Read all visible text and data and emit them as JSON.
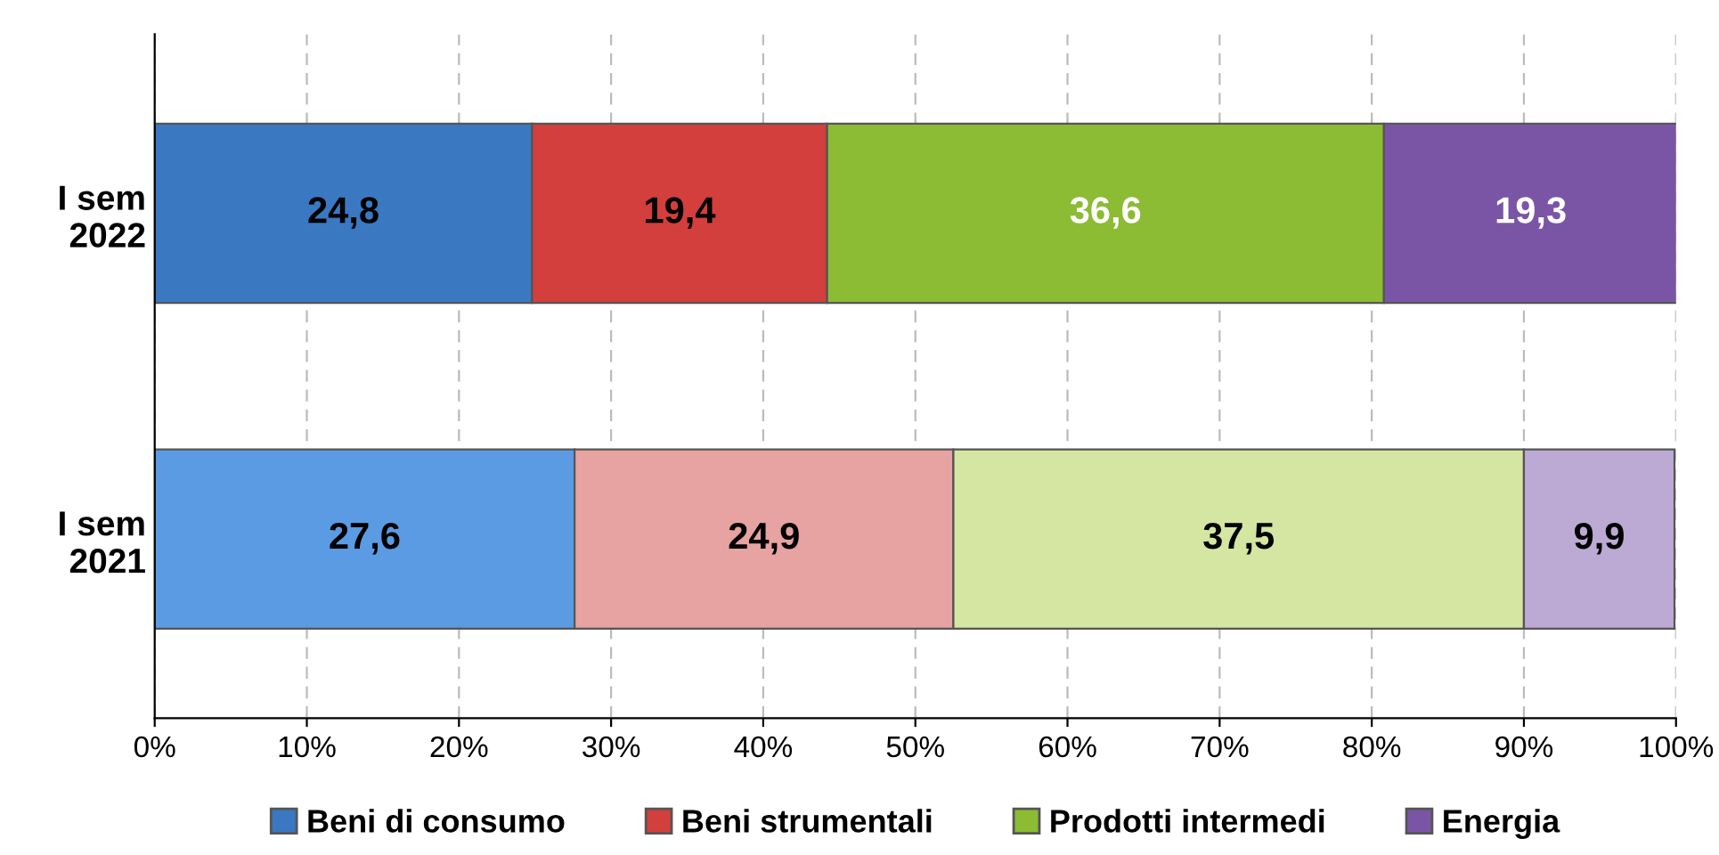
{
  "chart_data": {
    "type": "bar",
    "orientation": "horizontal",
    "stacked": true,
    "categories": [
      "I sem\n2022",
      "I sem\n2021"
    ],
    "series": [
      {
        "name": "Beni di consumo",
        "color": "#3a78c2",
        "colors": [
          "#3a78c2",
          "#5b9be3"
        ],
        "values": [
          24.8,
          27.6
        ],
        "value_labels": [
          "24,8",
          "27,6"
        ]
      },
      {
        "name": "Beni strumentali",
        "color": "#d23f3c",
        "colors": [
          "#d23f3c",
          "#e6a3a1"
        ],
        "values": [
          19.4,
          24.9
        ],
        "value_labels": [
          "19,4",
          "24,9"
        ]
      },
      {
        "name": "Prodotti intermedi",
        "color": "#8cbb34",
        "colors": [
          "#8cbb34",
          "#d5e6a3"
        ],
        "values": [
          36.6,
          37.5
        ],
        "value_labels": [
          "36,6",
          "37,5"
        ]
      },
      {
        "name": "Energia",
        "color": "#7b55a5",
        "colors": [
          "#7b55a5",
          "#bcaad5"
        ],
        "values": [
          19.3,
          9.9
        ],
        "value_labels": [
          "19,3",
          "9,9"
        ]
      }
    ],
    "xlim": [
      0,
      100
    ],
    "xticks": [
      {
        "value": 0,
        "label": "0%"
      },
      {
        "value": 10,
        "label": "10%"
      },
      {
        "value": 20,
        "label": "20%"
      },
      {
        "value": 30,
        "label": "30%"
      },
      {
        "value": 40,
        "label": "40%"
      },
      {
        "value": 50,
        "label": "50%"
      },
      {
        "value": 60,
        "label": "60%"
      },
      {
        "value": 70,
        "label": "70%"
      },
      {
        "value": 80,
        "label": "80%"
      },
      {
        "value": 90,
        "label": "90%"
      },
      {
        "value": 100,
        "label": "100%"
      }
    ],
    "grid": "x",
    "legend": "bottom"
  }
}
